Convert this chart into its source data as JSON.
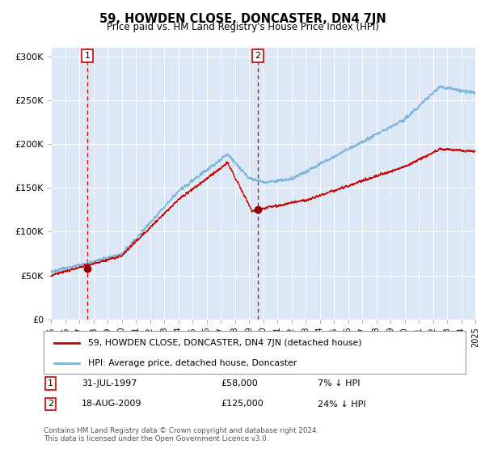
{
  "title": "59, HOWDEN CLOSE, DONCASTER, DN4 7JN",
  "subtitle": "Price paid vs. HM Land Registry's House Price Index (HPI)",
  "background_color": "#ffffff",
  "plot_bg_color": "#dce8f5",
  "ylim": [
    0,
    310000
  ],
  "yticks": [
    0,
    50000,
    100000,
    150000,
    200000,
    250000,
    300000
  ],
  "ytick_labels": [
    "£0",
    "£50K",
    "£100K",
    "£150K",
    "£200K",
    "£250K",
    "£300K"
  ],
  "xstart_year": 1995,
  "xend_year": 2025,
  "hpi_color": "#7ab4d8",
  "price_color": "#cc0000",
  "marker_color": "#8b0000",
  "vline_color": "#cc0000",
  "purchase1_year": 1997.58,
  "purchase1_price": 58000,
  "purchase1_label": "1",
  "purchase1_date": "31-JUL-1997",
  "purchase1_hpi_pct": "7% ↓ HPI",
  "purchase2_year": 2009.63,
  "purchase2_price": 125000,
  "purchase2_label": "2",
  "purchase2_date": "18-AUG-2009",
  "purchase2_hpi_pct": "24% ↓ HPI",
  "legend_line1": "59, HOWDEN CLOSE, DONCASTER, DN4 7JN (detached house)",
  "legend_line2": "HPI: Average price, detached house, Doncaster",
  "footer": "Contains HM Land Registry data © Crown copyright and database right 2024.\nThis data is licensed under the Open Government Licence v3.0.",
  "grid_color": "#ffffff"
}
